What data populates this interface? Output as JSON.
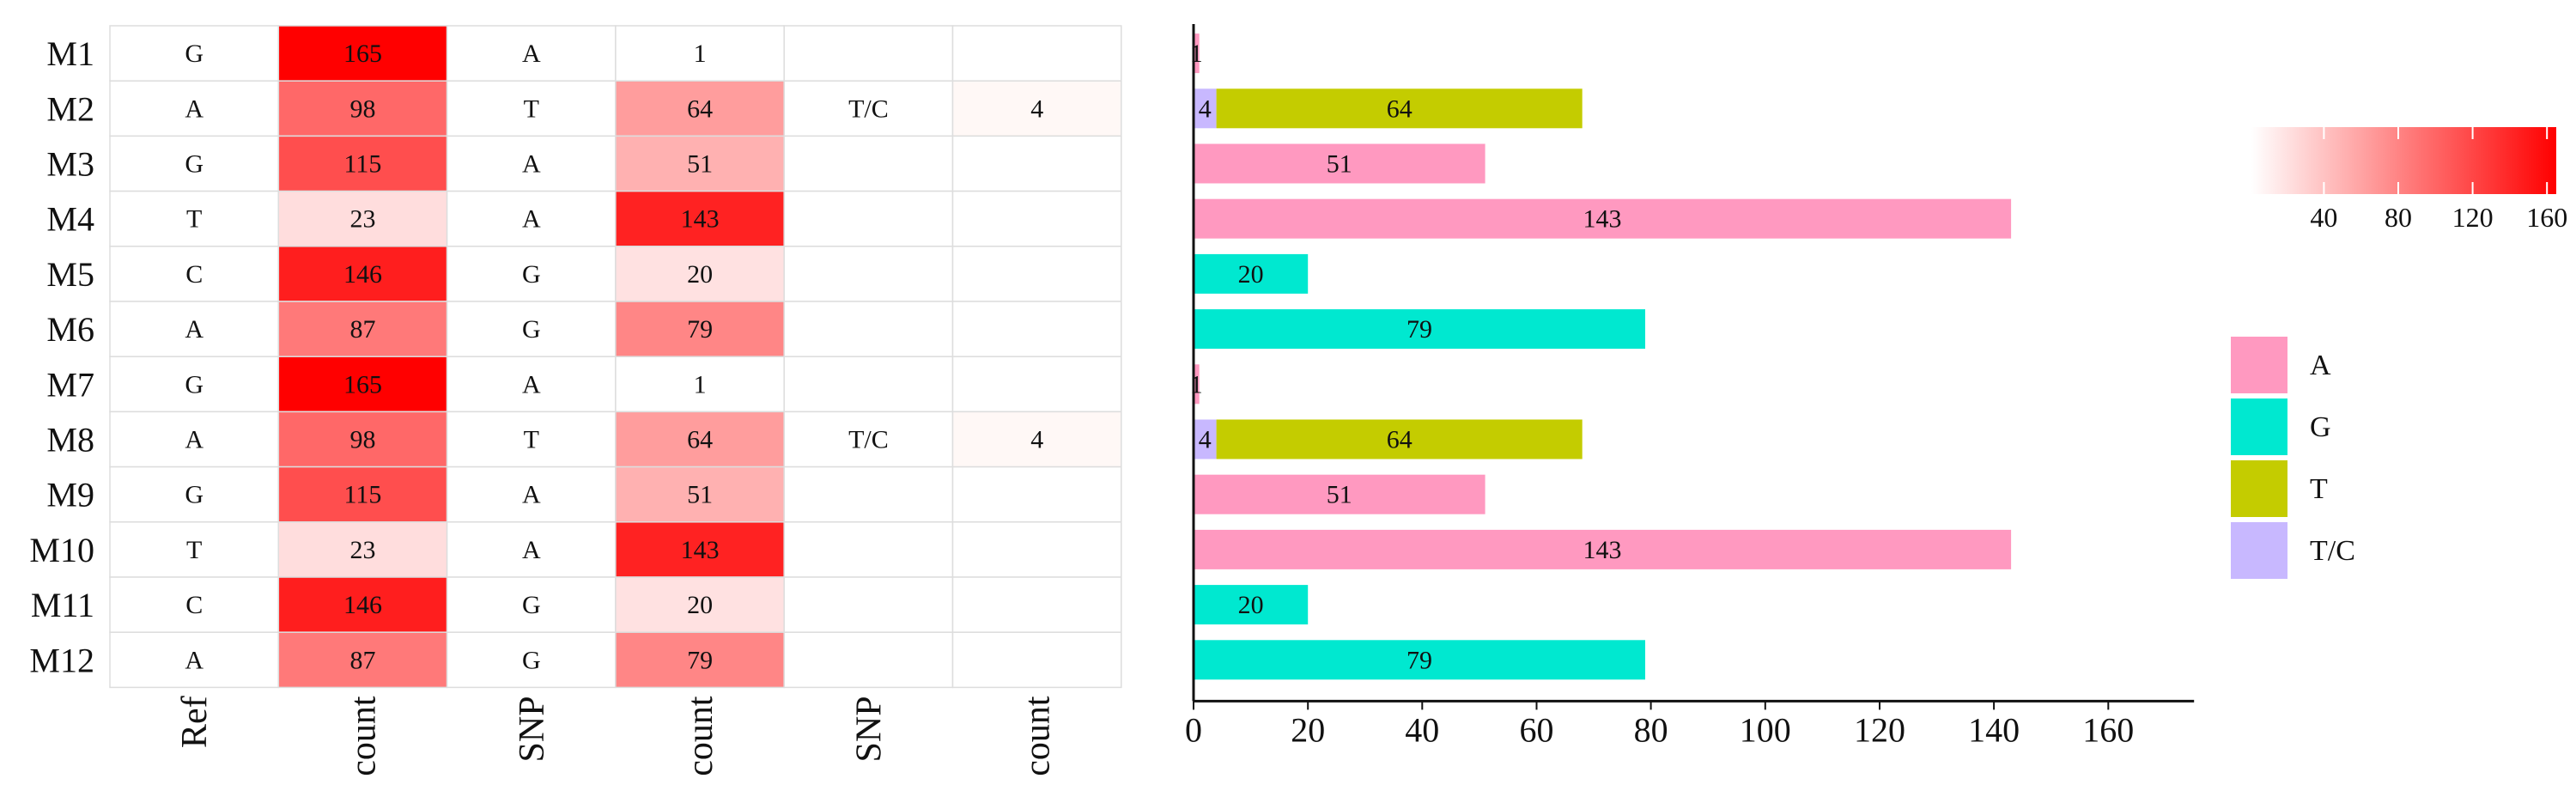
{
  "chart_data": [
    {
      "type": "heatmap",
      "row_labels": [
        "M1",
        "M2",
        "M3",
        "M4",
        "M5",
        "M6",
        "M7",
        "M8",
        "M9",
        "M10",
        "M11",
        "M12"
      ],
      "column_labels": [
        "Ref",
        "count",
        "SNP",
        "count",
        "SNP",
        "count"
      ],
      "cells": [
        [
          "G",
          "165",
          "A",
          "1",
          "",
          ""
        ],
        [
          "A",
          "98",
          "T",
          "64",
          "T/C",
          "4"
        ],
        [
          "G",
          "115",
          "A",
          "51",
          "",
          ""
        ],
        [
          "T",
          "23",
          "A",
          "143",
          "",
          ""
        ],
        [
          "C",
          "146",
          "G",
          "20",
          "",
          ""
        ],
        [
          "A",
          "87",
          "G",
          "79",
          "",
          ""
        ],
        [
          "G",
          "165",
          "A",
          "1",
          "",
          ""
        ],
        [
          "A",
          "98",
          "T",
          "64",
          "T/C",
          "4"
        ],
        [
          "G",
          "115",
          "A",
          "51",
          "",
          ""
        ],
        [
          "T",
          "23",
          "A",
          "143",
          "",
          ""
        ],
        [
          "C",
          "146",
          "G",
          "20",
          "",
          ""
        ],
        [
          "A",
          "87",
          "G",
          "79",
          "",
          ""
        ]
      ],
      "color_scale": {
        "min": 1,
        "max": 165,
        "low_color": "#ffffff",
        "high_color": "#ff0000",
        "ticks": [
          "40",
          "80",
          "120",
          "160"
        ],
        "tick_values": [
          40,
          80,
          120,
          160
        ]
      }
    },
    {
      "type": "bar",
      "orientation": "horizontal",
      "stacked": true,
      "categories": [
        "M1",
        "M2",
        "M3",
        "M4",
        "M5",
        "M6",
        "M7",
        "M8",
        "M9",
        "M10",
        "M11",
        "M12"
      ],
      "series": [
        {
          "name": "A",
          "color": "#ff99c0",
          "values": [
            1,
            0,
            51,
            143,
            0,
            0,
            1,
            0,
            51,
            143,
            0,
            0
          ]
        },
        {
          "name": "G",
          "color": "#00e8d0",
          "values": [
            0,
            0,
            0,
            0,
            20,
            79,
            0,
            0,
            0,
            0,
            20,
            79
          ]
        },
        {
          "name": "T",
          "color": "#c4cc00",
          "values": [
            0,
            64,
            0,
            0,
            0,
            0,
            0,
            64,
            0,
            0,
            0,
            0
          ]
        },
        {
          "name": "T/C",
          "color": "#c8b8ff",
          "values": [
            0,
            4,
            0,
            0,
            0,
            0,
            0,
            4,
            0,
            0,
            0,
            0
          ]
        }
      ],
      "stack_order": [
        "T/C",
        "A",
        "G",
        "T"
      ],
      "xlim": [
        0,
        175
      ],
      "xticks": [
        0,
        20,
        40,
        60,
        80,
        100,
        120,
        140,
        160
      ],
      "legend": {
        "position": "right"
      }
    }
  ]
}
